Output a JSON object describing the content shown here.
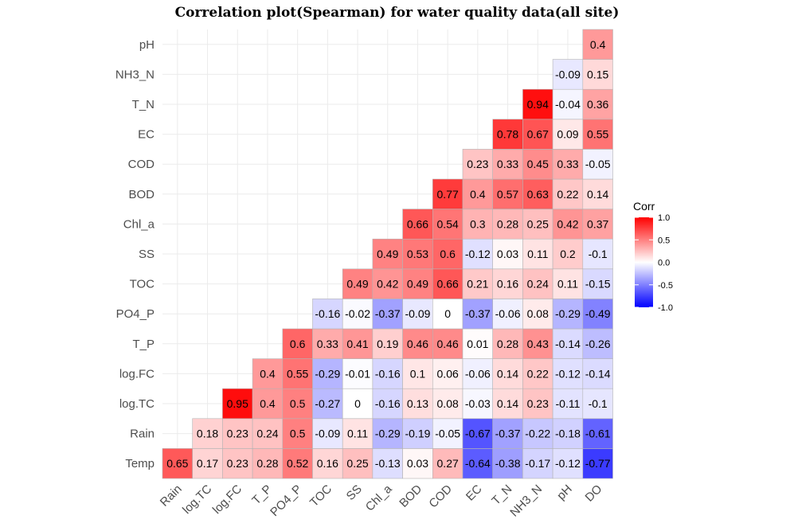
{
  "chart_data": {
    "type": "heatmap",
    "title": "Correlation plot(Spearman) for water quality data(all site)",
    "x_labels": [
      "Rain",
      "log.TC",
      "log.FC",
      "T_P",
      "PO4_P",
      "TOC",
      "SS",
      "Chl_a",
      "BOD",
      "COD",
      "EC",
      "T_N",
      "NH3_N",
      "pH",
      "DO"
    ],
    "y_labels_bottom_to_top": [
      "Temp",
      "Rain",
      "log.TC",
      "log.FC",
      "T_P",
      "PO4_P",
      "TOC",
      "SS",
      "Chl_a",
      "BOD",
      "COD",
      "EC",
      "T_N",
      "NH3_N",
      "pH"
    ],
    "rows": [
      {
        "y": "Temp",
        "values": [
          0.65,
          0.17,
          0.23,
          0.28,
          0.52,
          0.16,
          0.25,
          -0.13,
          0.03,
          0.27,
          -0.64,
          -0.38,
          -0.17,
          -0.12,
          -0.77
        ]
      },
      {
        "y": "Rain",
        "values": [
          0.18,
          0.23,
          0.24,
          0.5,
          -0.09,
          0.11,
          -0.29,
          -0.19,
          -0.05,
          -0.67,
          -0.37,
          -0.22,
          -0.18,
          -0.61
        ]
      },
      {
        "y": "log.TC",
        "values": [
          0.95,
          0.4,
          0.5,
          -0.27,
          0,
          -0.16,
          0.13,
          0.08,
          -0.03,
          0.14,
          0.23,
          -0.11,
          -0.1
        ]
      },
      {
        "y": "log.FC",
        "values": [
          0.4,
          0.55,
          -0.29,
          -0.01,
          -0.16,
          0.1,
          0.06,
          -0.06,
          0.14,
          0.22,
          -0.12,
          -0.14
        ]
      },
      {
        "y": "T_P",
        "values": [
          0.6,
          0.33,
          0.41,
          0.19,
          0.46,
          0.46,
          0.01,
          0.28,
          0.43,
          -0.14,
          -0.26
        ]
      },
      {
        "y": "PO4_P",
        "values": [
          -0.16,
          -0.02,
          -0.37,
          -0.09,
          0,
          -0.37,
          -0.06,
          0.08,
          -0.29,
          -0.49
        ]
      },
      {
        "y": "TOC",
        "values": [
          0.49,
          0.42,
          0.49,
          0.66,
          0.21,
          0.16,
          0.24,
          0.11,
          -0.15
        ]
      },
      {
        "y": "SS",
        "values": [
          0.49,
          0.53,
          0.6,
          -0.12,
          0.03,
          0.11,
          0.2,
          -0.1
        ]
      },
      {
        "y": "Chl_a",
        "values": [
          0.66,
          0.54,
          0.3,
          0.28,
          0.25,
          0.42,
          0.37
        ]
      },
      {
        "y": "BOD",
        "values": [
          0.77,
          0.4,
          0.57,
          0.63,
          0.22,
          0.14
        ]
      },
      {
        "y": "COD",
        "values": [
          0.23,
          0.33,
          0.45,
          0.33,
          -0.05
        ]
      },
      {
        "y": "EC",
        "values": [
          0.78,
          0.67,
          0.09,
          0.55
        ]
      },
      {
        "y": "T_N",
        "values": [
          0.94,
          -0.04,
          0.36
        ]
      },
      {
        "y": "NH3_N",
        "values": [
          -0.09,
          0.15
        ]
      },
      {
        "y": "pH",
        "values": [
          0.4
        ]
      }
    ],
    "legend": {
      "title": "Corr",
      "ticks": [
        "1.0",
        "0.5",
        "0.0",
        "-0.5",
        "-1.0"
      ],
      "tick_values": [
        1.0,
        0.5,
        0.0,
        -0.5,
        -1.0
      ],
      "placement": "right"
    },
    "color_scale": {
      "low": "#0000ff",
      "mid": "#ffffff",
      "high": "#ff0000",
      "domain": [
        -1,
        1
      ]
    },
    "grid": true
  }
}
